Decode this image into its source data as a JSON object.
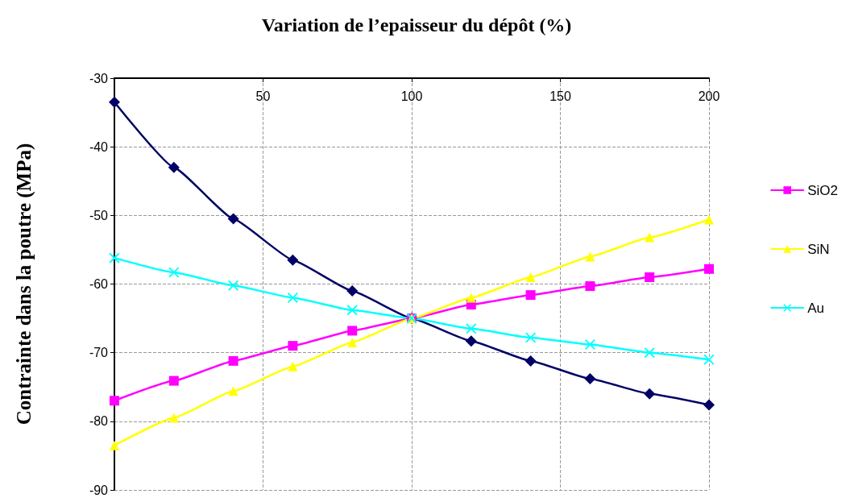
{
  "chart_data": {
    "type": "line",
    "xlabel": "Variation de l’epaisseur du dépôt (%)",
    "ylabel": "Contrainte dans la poutre (MPa)",
    "x": [
      0,
      20,
      40,
      60,
      80,
      100,
      120,
      140,
      160,
      180,
      200
    ],
    "series": [
      {
        "color": "#000066",
        "marker": "diamond",
        "values": [
          -33.5,
          -43,
          -50.5,
          -56.5,
          -61,
          -65,
          -68.3,
          -71.2,
          -73.8,
          -76,
          -77.6
        ]
      },
      {
        "name": "SiO2",
        "color": "#ff00ff",
        "marker": "square",
        "values": [
          -77,
          -74.1,
          -71.2,
          -69,
          -66.8,
          -65,
          -63,
          -61.6,
          -60.3,
          -59,
          -57.8
        ]
      },
      {
        "name": "SiN",
        "color": "#ffff00",
        "marker": "triangle",
        "values": [
          -83.5,
          -79.5,
          -75.6,
          -72,
          -68.5,
          -65,
          -62,
          -59,
          -56,
          -53.2,
          -50.6
        ]
      },
      {
        "name": "Au",
        "color": "#00ffff",
        "marker": "cross",
        "values": [
          -56.2,
          -58.3,
          -60.2,
          -62,
          -63.8,
          -65,
          -66.5,
          -67.8,
          -68.8,
          -70,
          -71
        ]
      }
    ],
    "xlim": [
      0,
      200
    ],
    "xticks": [
      50,
      100,
      150,
      200
    ],
    "ylim": [
      -90,
      -30
    ],
    "yticks": [
      -90,
      -80,
      -70,
      -60,
      -50,
      -40,
      -30
    ],
    "grid": true,
    "legend": "right",
    "line_style": "solid"
  }
}
